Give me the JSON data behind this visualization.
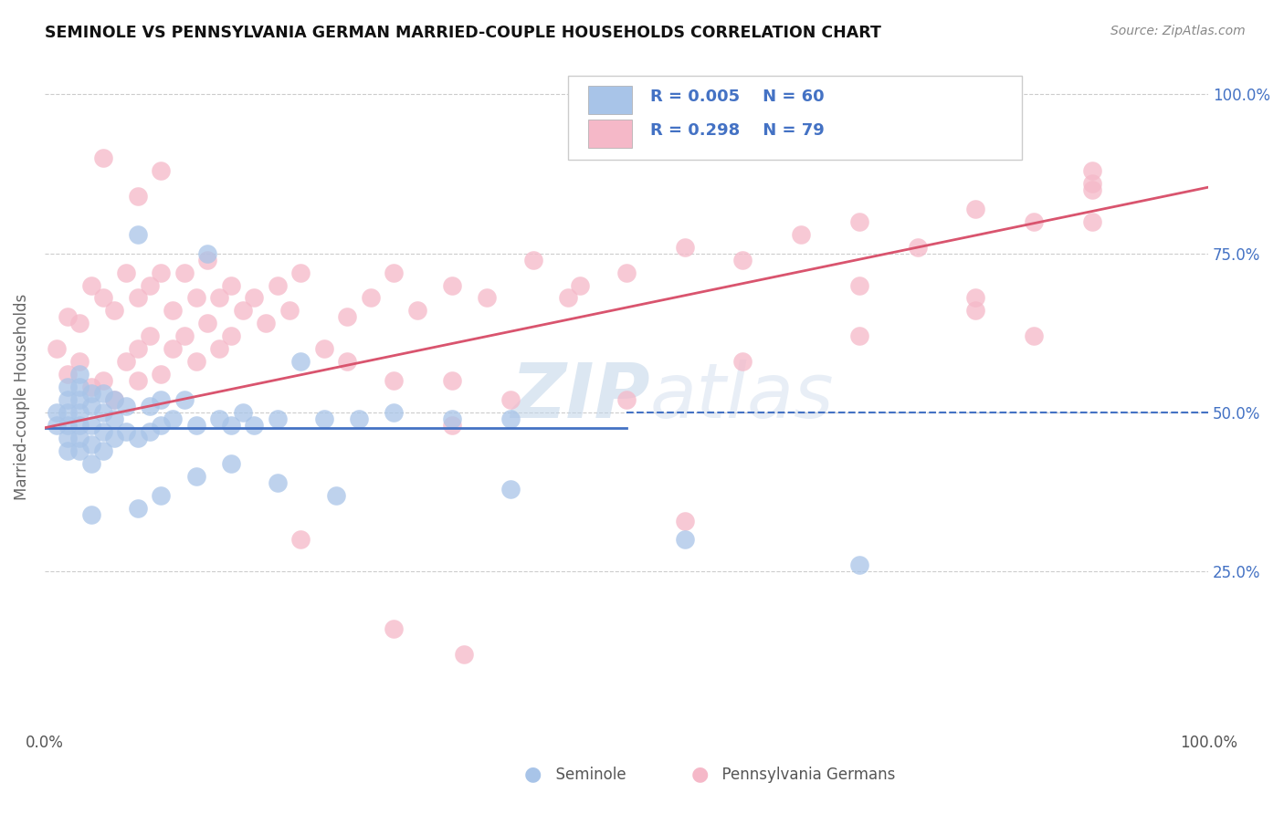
{
  "title": "SEMINOLE VS PENNSYLVANIA GERMAN MARRIED-COUPLE HOUSEHOLDS CORRELATION CHART",
  "source": "Source: ZipAtlas.com",
  "ylabel": "Married-couple Households",
  "xlim": [
    0.0,
    1.0
  ],
  "ylim": [
    0.0,
    1.05
  ],
  "yticks": [
    0.25,
    0.5,
    0.75,
    1.0
  ],
  "ytick_labels": [
    "25.0%",
    "50.0%",
    "75.0%",
    "100.0%"
  ],
  "legend_r1": "R = 0.005",
  "legend_n1": "N = 60",
  "legend_r2": "R = 0.298",
  "legend_n2": "N = 79",
  "color_seminole_fill": "#a8c4e8",
  "color_seminole_edge": "#8aadd4",
  "color_penn_fill": "#f5b8c8",
  "color_penn_edge": "#e898b0",
  "color_line_seminole": "#4472c4",
  "color_line_penn": "#d9546e",
  "color_grid": "#cccccc",
  "color_ytick": "#4472c4",
  "color_xtick": "#555555",
  "watermark_zip": "ZIP",
  "watermark_atlas": "atlas",
  "seminole_x": [
    0.01,
    0.01,
    0.02,
    0.02,
    0.02,
    0.02,
    0.02,
    0.02,
    0.03,
    0.03,
    0.03,
    0.03,
    0.03,
    0.03,
    0.03,
    0.04,
    0.04,
    0.04,
    0.04,
    0.04,
    0.05,
    0.05,
    0.05,
    0.05,
    0.06,
    0.06,
    0.06,
    0.07,
    0.07,
    0.08,
    0.08,
    0.09,
    0.09,
    0.1,
    0.1,
    0.11,
    0.12,
    0.13,
    0.14,
    0.15,
    0.16,
    0.17,
    0.18,
    0.2,
    0.22,
    0.24,
    0.27,
    0.3,
    0.35,
    0.4,
    0.13,
    0.16,
    0.08,
    0.1,
    0.2,
    0.25,
    0.4,
    0.55,
    0.7,
    0.04
  ],
  "seminole_y": [
    0.48,
    0.5,
    0.44,
    0.46,
    0.48,
    0.5,
    0.52,
    0.54,
    0.44,
    0.46,
    0.48,
    0.5,
    0.52,
    0.54,
    0.56,
    0.42,
    0.45,
    0.48,
    0.51,
    0.53,
    0.44,
    0.47,
    0.5,
    0.53,
    0.46,
    0.49,
    0.52,
    0.47,
    0.51,
    0.78,
    0.46,
    0.47,
    0.51,
    0.48,
    0.52,
    0.49,
    0.52,
    0.48,
    0.75,
    0.49,
    0.48,
    0.5,
    0.48,
    0.49,
    0.58,
    0.49,
    0.49,
    0.5,
    0.49,
    0.49,
    0.4,
    0.42,
    0.35,
    0.37,
    0.39,
    0.37,
    0.38,
    0.3,
    0.26,
    0.34
  ],
  "penn_x": [
    0.01,
    0.02,
    0.02,
    0.03,
    0.03,
    0.04,
    0.04,
    0.05,
    0.05,
    0.06,
    0.06,
    0.07,
    0.07,
    0.08,
    0.08,
    0.08,
    0.09,
    0.09,
    0.1,
    0.1,
    0.11,
    0.11,
    0.12,
    0.12,
    0.13,
    0.13,
    0.14,
    0.14,
    0.15,
    0.15,
    0.16,
    0.16,
    0.17,
    0.18,
    0.19,
    0.2,
    0.21,
    0.22,
    0.24,
    0.26,
    0.28,
    0.3,
    0.32,
    0.35,
    0.38,
    0.42,
    0.46,
    0.5,
    0.55,
    0.6,
    0.65,
    0.7,
    0.75,
    0.8,
    0.85,
    0.9,
    0.26,
    0.3,
    0.35,
    0.4,
    0.5,
    0.6,
    0.7,
    0.8,
    0.35,
    0.45,
    0.1,
    0.08,
    0.05,
    0.3,
    0.36,
    0.22,
    0.55,
    0.85,
    0.7,
    0.8,
    0.9,
    0.9,
    0.9
  ],
  "penn_y": [
    0.6,
    0.56,
    0.65,
    0.58,
    0.64,
    0.54,
    0.7,
    0.55,
    0.68,
    0.52,
    0.66,
    0.58,
    0.72,
    0.6,
    0.55,
    0.68,
    0.62,
    0.7,
    0.56,
    0.72,
    0.6,
    0.66,
    0.62,
    0.72,
    0.58,
    0.68,
    0.64,
    0.74,
    0.6,
    0.68,
    0.62,
    0.7,
    0.66,
    0.68,
    0.64,
    0.7,
    0.66,
    0.72,
    0.6,
    0.65,
    0.68,
    0.72,
    0.66,
    0.7,
    0.68,
    0.74,
    0.7,
    0.72,
    0.76,
    0.74,
    0.78,
    0.8,
    0.76,
    0.82,
    0.8,
    0.86,
    0.58,
    0.55,
    0.55,
    0.52,
    0.52,
    0.58,
    0.62,
    0.66,
    0.48,
    0.68,
    0.88,
    0.84,
    0.9,
    0.16,
    0.12,
    0.3,
    0.33,
    0.62,
    0.7,
    0.68,
    0.85,
    0.8,
    0.88
  ],
  "sem_line_x0": 0.0,
  "sem_line_x1": 0.5,
  "sem_line_y": 0.476,
  "sem_line_dashed_x0": 0.5,
  "sem_line_dashed_x1": 1.0,
  "sem_line_dashed_y": 0.5,
  "penn_line_x0": 0.0,
  "penn_line_x1": 1.0,
  "penn_line_y0": 0.476,
  "penn_line_y1": 0.854
}
